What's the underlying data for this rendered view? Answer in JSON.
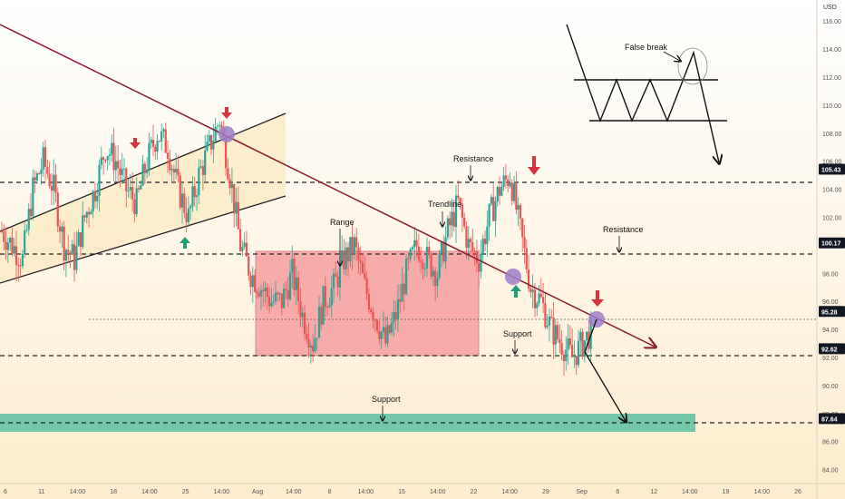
{
  "chart_data": {
    "type": "candlestick",
    "currency": "USD",
    "y_ticks": [
      "116.00",
      "114.00",
      "112.00",
      "110.00",
      "108.00",
      "106.00",
      "104.00",
      "102.00",
      "98.00",
      "96.00",
      "94.00",
      "92.00",
      "90.00",
      "88.00",
      "86.00",
      "84.00"
    ],
    "y_range": [
      83.0,
      117.5
    ],
    "x_ticks": [
      "6",
      "11",
      "14:00",
      "18",
      "14:00",
      "25",
      "14:00",
      "Aug",
      "14:00",
      "8",
      "14:00",
      "15",
      "14:00",
      "22",
      "14:00",
      "29",
      "Sep",
      "6",
      "12",
      "14:00",
      "19",
      "14:00",
      "26"
    ],
    "price_labels": [
      {
        "text": "105.43",
        "value": 105.43
      },
      {
        "text": "100.17",
        "value": 100.17
      },
      {
        "text": "95.28",
        "value": 95.28
      },
      {
        "text": "92.62",
        "value": 92.62
      },
      {
        "text": "87.64",
        "value": 87.64
      }
    ],
    "annotations": [
      "False break",
      "Resistance",
      "Trendline",
      "Range",
      "Resistance",
      "Support",
      "Support"
    ],
    "colors": {
      "up": "#26a69a",
      "down": "#ef5350",
      "trendline": "#8b1a2b",
      "range_fill": "#f7a0a0",
      "support_zone": "#66c2a5",
      "channel_fill": "#fcebc8",
      "marker": "#9c7ec7",
      "down_arrow": "#d9323f",
      "up_arrow": "#1f9e7a"
    },
    "candle_seed": 7,
    "price_path": [
      101,
      100,
      99,
      104,
      106,
      104,
      100,
      99,
      102,
      104,
      107,
      106,
      104,
      103,
      106,
      108,
      107,
      104,
      102,
      105,
      107,
      109,
      105,
      100,
      98,
      97,
      96,
      96,
      98,
      95,
      93,
      96,
      97,
      99,
      100,
      97,
      95,
      93,
      95,
      98,
      100,
      99,
      98,
      101,
      103,
      100,
      99,
      102,
      104,
      105,
      101,
      97,
      96,
      94,
      93,
      92,
      93,
      94
    ]
  }
}
